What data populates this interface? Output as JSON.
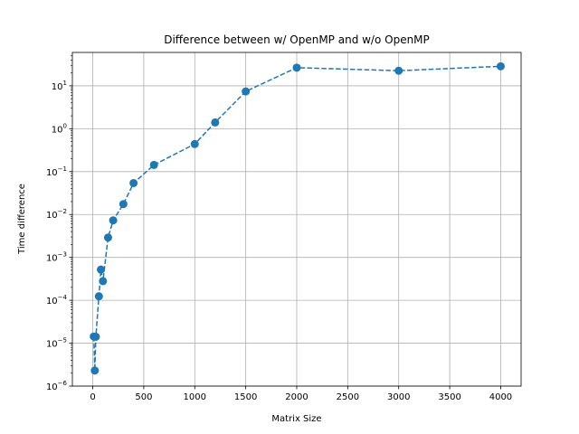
{
  "chart_data": {
    "type": "line",
    "title": "Difference between w/ OpenMP and w/o OpenMP",
    "xlabel": "Matrix Size",
    "ylabel": "Time difference",
    "xlim": [
      -200,
      4200
    ],
    "ylim": [
      1e-06,
      60
    ],
    "yscale": "log",
    "grid": true,
    "x_ticks": [
      0,
      500,
      1000,
      1500,
      2000,
      2500,
      3000,
      3500,
      4000
    ],
    "y_ticks": [
      {
        "value": 1e-06,
        "mantissa": "10",
        "exp": "−6"
      },
      {
        "value": 1e-05,
        "mantissa": "10",
        "exp": "−5"
      },
      {
        "value": 0.0001,
        "mantissa": "10",
        "exp": "−4"
      },
      {
        "value": 0.001,
        "mantissa": "10",
        "exp": "−3"
      },
      {
        "value": 0.01,
        "mantissa": "10",
        "exp": "−2"
      },
      {
        "value": 0.1,
        "mantissa": "10",
        "exp": "−1"
      },
      {
        "value": 1,
        "mantissa": "10",
        "exp": "0"
      },
      {
        "value": 10,
        "mantissa": "10",
        "exp": "1"
      }
    ],
    "series": [
      {
        "color": "#1f77b4",
        "line_style": "dashed",
        "marker": "circle",
        "x": [
          10,
          20,
          30,
          60,
          80,
          100,
          150,
          200,
          300,
          400,
          600,
          1000,
          1200,
          1500,
          2000,
          3000,
          4000
        ],
        "y": [
          1.43e-05,
          2.3e-06,
          1.41e-05,
          0.000124,
          0.00052,
          0.00028,
          0.0029,
          0.0073,
          0.0175,
          0.054,
          0.143,
          0.44,
          1.4,
          7.4,
          26.5,
          22.5,
          28.5
        ]
      }
    ]
  }
}
